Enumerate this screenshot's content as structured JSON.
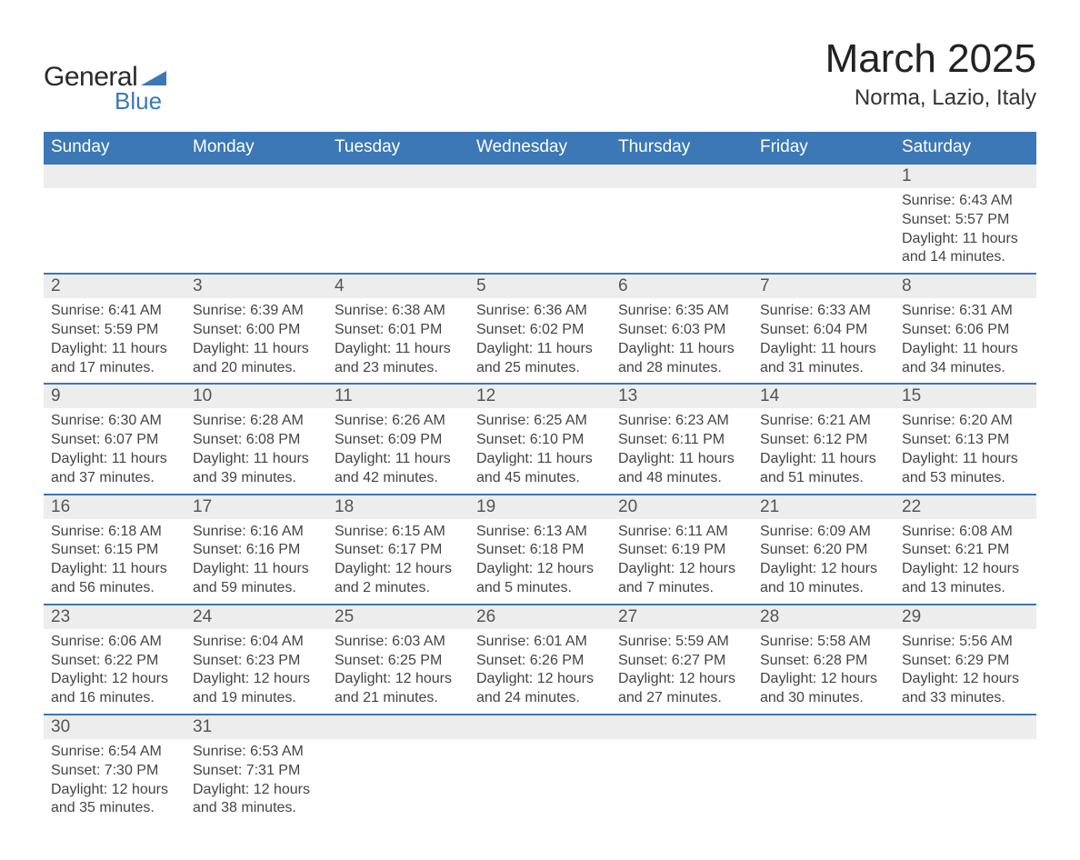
{
  "logo": {
    "text1": "General",
    "text2": "Blue",
    "shape_color": "#3b78b5"
  },
  "title": "March 2025",
  "location": "Norma, Lazio, Italy",
  "colors": {
    "header_bg": "#3b78b5",
    "header_text": "#ffffff",
    "daynum_bg": "#ededed",
    "row_border": "#3b78b5",
    "body_text": "#444444"
  },
  "weekdays": [
    "Sunday",
    "Monday",
    "Tuesday",
    "Wednesday",
    "Thursday",
    "Friday",
    "Saturday"
  ],
  "weeks": [
    {
      "nums": [
        "",
        "",
        "",
        "",
        "",
        "",
        "1"
      ],
      "cells": [
        "",
        "",
        "",
        "",
        "",
        "",
        "Sunrise: 6:43 AM\nSunset: 5:57 PM\nDaylight: 11 hours and 14 minutes."
      ]
    },
    {
      "nums": [
        "2",
        "3",
        "4",
        "5",
        "6",
        "7",
        "8"
      ],
      "cells": [
        "Sunrise: 6:41 AM\nSunset: 5:59 PM\nDaylight: 11 hours and 17 minutes.",
        "Sunrise: 6:39 AM\nSunset: 6:00 PM\nDaylight: 11 hours and 20 minutes.",
        "Sunrise: 6:38 AM\nSunset: 6:01 PM\nDaylight: 11 hours and 23 minutes.",
        "Sunrise: 6:36 AM\nSunset: 6:02 PM\nDaylight: 11 hours and 25 minutes.",
        "Sunrise: 6:35 AM\nSunset: 6:03 PM\nDaylight: 11 hours and 28 minutes.",
        "Sunrise: 6:33 AM\nSunset: 6:04 PM\nDaylight: 11 hours and 31 minutes.",
        "Sunrise: 6:31 AM\nSunset: 6:06 PM\nDaylight: 11 hours and 34 minutes."
      ]
    },
    {
      "nums": [
        "9",
        "10",
        "11",
        "12",
        "13",
        "14",
        "15"
      ],
      "cells": [
        "Sunrise: 6:30 AM\nSunset: 6:07 PM\nDaylight: 11 hours and 37 minutes.",
        "Sunrise: 6:28 AM\nSunset: 6:08 PM\nDaylight: 11 hours and 39 minutes.",
        "Sunrise: 6:26 AM\nSunset: 6:09 PM\nDaylight: 11 hours and 42 minutes.",
        "Sunrise: 6:25 AM\nSunset: 6:10 PM\nDaylight: 11 hours and 45 minutes.",
        "Sunrise: 6:23 AM\nSunset: 6:11 PM\nDaylight: 11 hours and 48 minutes.",
        "Sunrise: 6:21 AM\nSunset: 6:12 PM\nDaylight: 11 hours and 51 minutes.",
        "Sunrise: 6:20 AM\nSunset: 6:13 PM\nDaylight: 11 hours and 53 minutes."
      ]
    },
    {
      "nums": [
        "16",
        "17",
        "18",
        "19",
        "20",
        "21",
        "22"
      ],
      "cells": [
        "Sunrise: 6:18 AM\nSunset: 6:15 PM\nDaylight: 11 hours and 56 minutes.",
        "Sunrise: 6:16 AM\nSunset: 6:16 PM\nDaylight: 11 hours and 59 minutes.",
        "Sunrise: 6:15 AM\nSunset: 6:17 PM\nDaylight: 12 hours and 2 minutes.",
        "Sunrise: 6:13 AM\nSunset: 6:18 PM\nDaylight: 12 hours and 5 minutes.",
        "Sunrise: 6:11 AM\nSunset: 6:19 PM\nDaylight: 12 hours and 7 minutes.",
        "Sunrise: 6:09 AM\nSunset: 6:20 PM\nDaylight: 12 hours and 10 minutes.",
        "Sunrise: 6:08 AM\nSunset: 6:21 PM\nDaylight: 12 hours and 13 minutes."
      ]
    },
    {
      "nums": [
        "23",
        "24",
        "25",
        "26",
        "27",
        "28",
        "29"
      ],
      "cells": [
        "Sunrise: 6:06 AM\nSunset: 6:22 PM\nDaylight: 12 hours and 16 minutes.",
        "Sunrise: 6:04 AM\nSunset: 6:23 PM\nDaylight: 12 hours and 19 minutes.",
        "Sunrise: 6:03 AM\nSunset: 6:25 PM\nDaylight: 12 hours and 21 minutes.",
        "Sunrise: 6:01 AM\nSunset: 6:26 PM\nDaylight: 12 hours and 24 minutes.",
        "Sunrise: 5:59 AM\nSunset: 6:27 PM\nDaylight: 12 hours and 27 minutes.",
        "Sunrise: 5:58 AM\nSunset: 6:28 PM\nDaylight: 12 hours and 30 minutes.",
        "Sunrise: 5:56 AM\nSunset: 6:29 PM\nDaylight: 12 hours and 33 minutes."
      ]
    },
    {
      "nums": [
        "30",
        "31",
        "",
        "",
        "",
        "",
        ""
      ],
      "cells": [
        "Sunrise: 6:54 AM\nSunset: 7:30 PM\nDaylight: 12 hours and 35 minutes.",
        "Sunrise: 6:53 AM\nSunset: 7:31 PM\nDaylight: 12 hours and 38 minutes.",
        "",
        "",
        "",
        "",
        ""
      ]
    }
  ]
}
